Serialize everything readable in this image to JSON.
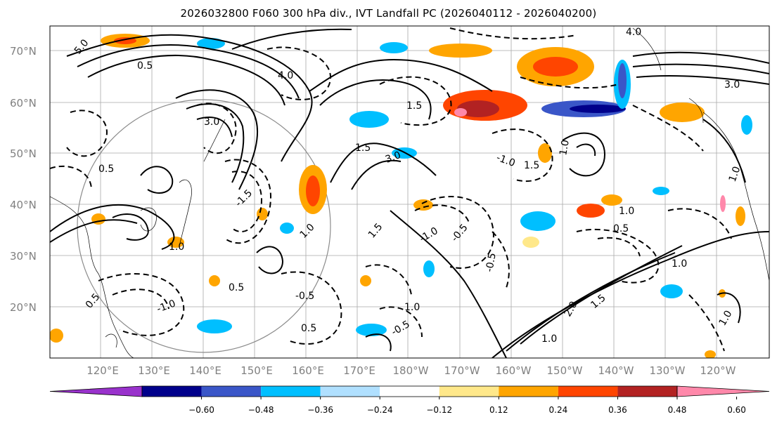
{
  "title": "2026032800 F060 300 hPa div., IVT Landfall PC (2026040112 - 2026040200)",
  "map": {
    "lat_ticks": [
      "70°N",
      "60°N",
      "50°N",
      "40°N",
      "30°N",
      "20°N"
    ],
    "lon_ticks": [
      "120°E",
      "130°E",
      "140°E",
      "150°E",
      "160°E",
      "170°E",
      "180°W",
      "170°W",
      "160°W",
      "150°W",
      "140°W",
      "130°W",
      "120°W"
    ],
    "contour_labels": [
      "5.0",
      "4.0",
      "3.0",
      "3.0",
      "1.5",
      "1.0",
      "1.5",
      "0.5",
      "1.0",
      "0.5",
      "0.5",
      "0.5",
      "1.0",
      "2.0",
      "1.5",
      "1.0",
      "1.0",
      "1.5",
      "0.5",
      "1.0",
      "3.0",
      "1.0",
      "1.0",
      "0.5",
      "1.5",
      "4.0",
      "1.0"
    ],
    "contour_labels_neg": [
      "-0.5",
      "-0.5",
      "-0.5",
      "-1.0",
      "-1.0",
      "-1.5",
      "-0.5",
      "-1.0"
    ]
  },
  "colorbar": {
    "colors": [
      "#9932CC",
      "#00008B",
      "#3A56C8",
      "#00BFFF",
      "#B0E0FF",
      "#FFFFFF",
      "#FFE88A",
      "#FFA500",
      "#FF4500",
      "#B22222",
      "#FF88AA"
    ],
    "labels": [
      "−0.60",
      "−0.48",
      "−0.36",
      "−0.24",
      "−0.12",
      "0.12",
      "0.24",
      "0.36",
      "0.48",
      "0.60"
    ]
  }
}
